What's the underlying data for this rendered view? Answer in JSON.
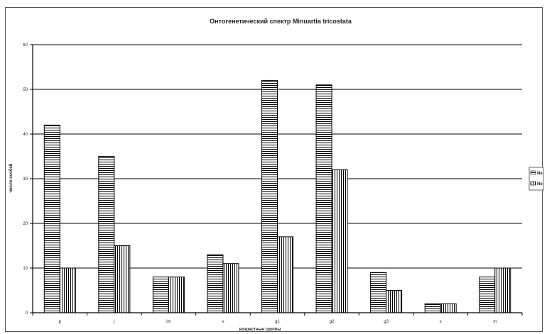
{
  "chart_data": {
    "type": "bar",
    "title": "Онтогенетический спектр Minuartia tricostata",
    "xlabel": "возрастные группы",
    "ylabel": "число особей",
    "categories": [
      "p",
      "j",
      "im",
      "v",
      "g1",
      "g2",
      "g3",
      "s",
      "m"
    ],
    "ylim": [
      0,
      60
    ],
    "yticks": [
      0,
      10,
      20,
      30,
      40,
      50,
      60
    ],
    "grid": true,
    "legend_position": "right",
    "series": [
      {
        "name": "Ne",
        "pattern": "horizontal-stripes",
        "values": [
          42,
          35,
          8,
          13,
          52,
          51,
          9,
          2,
          8
        ]
      },
      {
        "name": "Ne",
        "pattern": "vertical-stripes",
        "values": [
          10,
          15,
          8,
          11,
          17,
          32,
          5,
          2,
          10
        ]
      }
    ]
  }
}
